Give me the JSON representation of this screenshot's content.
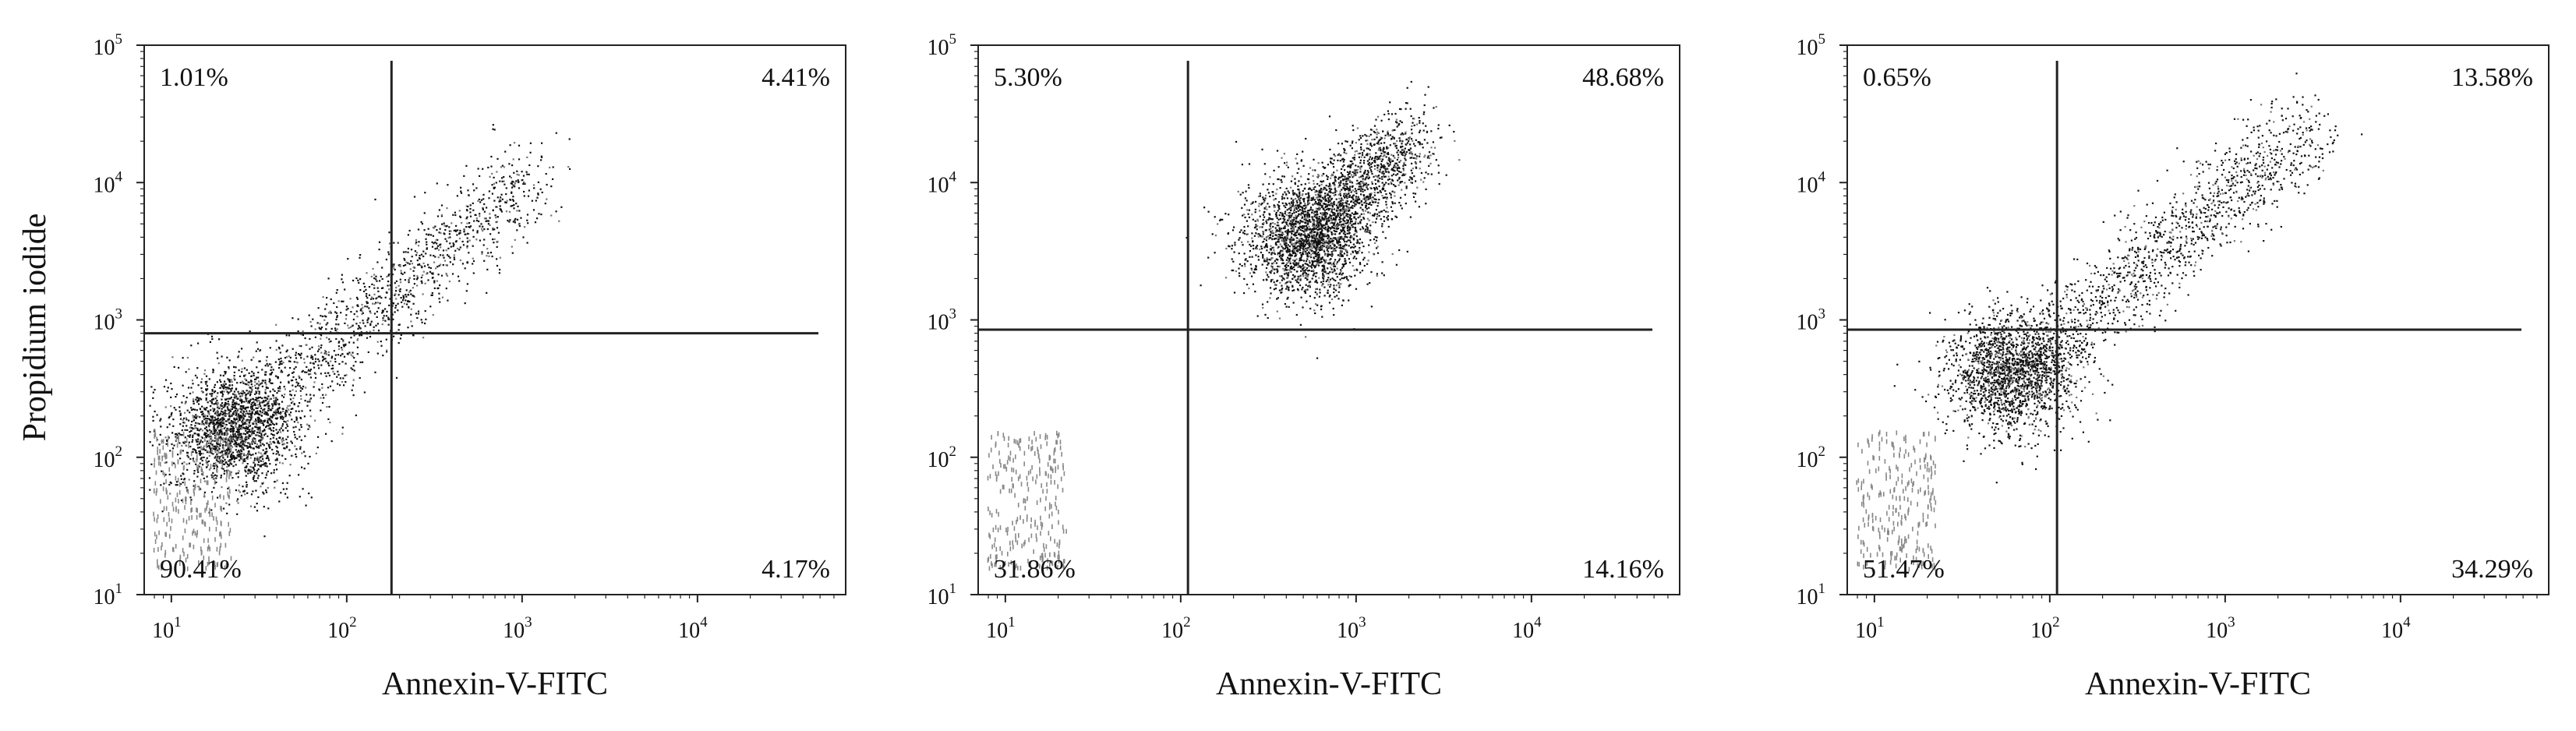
{
  "figure": {
    "y_axis_label": "Propidium iodide"
  },
  "chart_data": [
    {
      "type": "scatter",
      "panel": 1,
      "xlabel": "Annexin-V-FITC",
      "ylabel": "Propidium iodide",
      "x_scale": "log",
      "y_scale": "log",
      "xlim": [
        7,
        70000
      ],
      "ylim": [
        10,
        100000
      ],
      "tick_base": "10",
      "x_tick_exponents": [
        "1",
        "2",
        "3",
        "4",
        "5"
      ],
      "y_tick_exponents": [
        "1",
        "2",
        "3",
        "4",
        "5"
      ],
      "quadrant_gate": {
        "x": 180,
        "y": 800
      },
      "quadrants": {
        "upper_left": "1.01%",
        "upper_right": "4.41%",
        "lower_left": "90.41%",
        "lower_right": "4.17%"
      },
      "population": {
        "center": [
          22,
          160
        ],
        "direction": "diagonal",
        "extends_to": [
          1200,
          12000
        ]
      }
    },
    {
      "type": "scatter",
      "panel": 2,
      "xlabel": "Annexin-V-FITC",
      "ylabel": "",
      "x_scale": "log",
      "y_scale": "log",
      "xlim": [
        7,
        70000
      ],
      "ylim": [
        10,
        100000
      ],
      "tick_base": "10",
      "x_tick_exponents": [
        "1",
        "2",
        "3",
        "4",
        "5"
      ],
      "y_tick_exponents": [
        "1",
        "2",
        "3",
        "4",
        "5"
      ],
      "quadrant_gate": {
        "x": 110,
        "y": 850
      },
      "quadrants": {
        "upper_left": "5.30%",
        "upper_right": "48.68%",
        "lower_left": "31.86%",
        "lower_right": "14.16%"
      },
      "population": {
        "center": [
          500,
          4000
        ],
        "direction": "diagonal",
        "extends_to": [
          2000,
          20000
        ]
      }
    },
    {
      "type": "scatter",
      "panel": 3,
      "xlabel": "Annexin-V-FITC",
      "ylabel": "",
      "x_scale": "log",
      "y_scale": "log",
      "xlim": [
        7,
        70000
      ],
      "ylim": [
        10,
        100000
      ],
      "tick_base": "10",
      "x_tick_exponents": [
        "1",
        "2",
        "3",
        "4",
        "5"
      ],
      "y_tick_exponents": [
        "1",
        "2",
        "3",
        "4",
        "5"
      ],
      "quadrant_gate": {
        "x": 110,
        "y": 850
      },
      "quadrants": {
        "upper_left": "0.65%",
        "upper_right": "13.58%",
        "lower_left": "51.47%",
        "lower_right": "34.29%"
      },
      "population": {
        "center": [
          60,
          400
        ],
        "direction": "diagonal",
        "extends_to": [
          3000,
          25000
        ]
      }
    }
  ]
}
